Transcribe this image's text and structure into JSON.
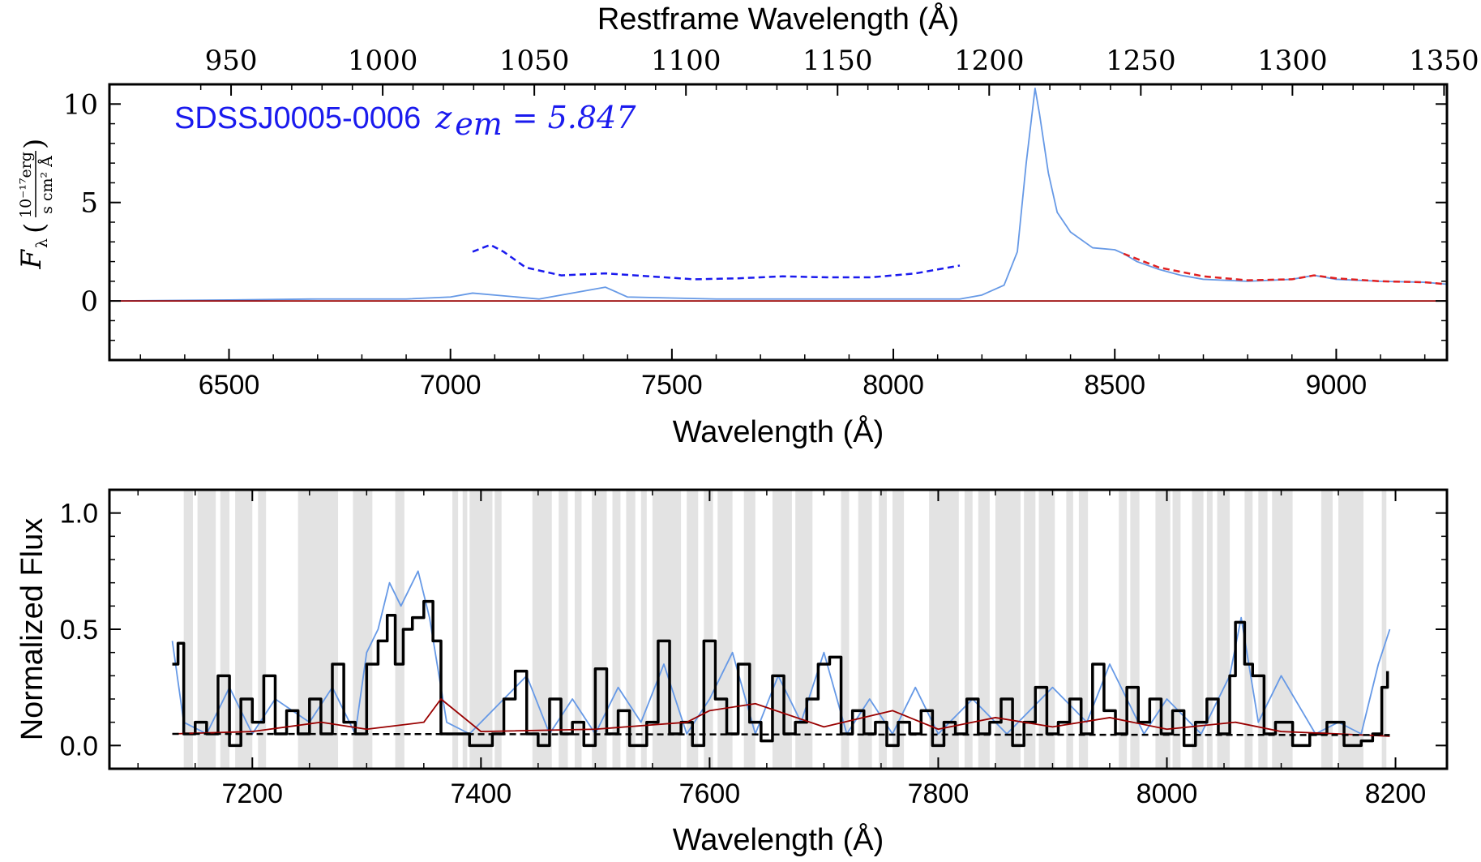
{
  "chart_data": [
    {
      "type": "line",
      "title": "",
      "annotation": {
        "object": "SDSSJ0005-0006",
        "redshift_label": "z",
        "redshift_sub": "em",
        "redshift_value": "5.847",
        "color": "#1a1aee"
      },
      "xlabel": "Wavelength (Å)",
      "x2label": "Restframe Wavelength (Å)",
      "ylabel": "F",
      "ylabel_sub": "λ",
      "ylabel_unit": {
        "numerator": "10⁻¹⁷erg",
        "denominator": "s cm² Å"
      },
      "xlim": [
        6230,
        9250
      ],
      "ylim": [
        -3,
        11
      ],
      "xticks": [
        "6500",
        "7000",
        "7500",
        "8000",
        "8500",
        "9000"
      ],
      "yticks": [
        "0",
        "5",
        "10"
      ],
      "x2ticks": [
        "950",
        "1000",
        "1050",
        "1100",
        "1150",
        "1200",
        "1250",
        "1300",
        "1350"
      ],
      "x2_conversion_z": 5.847,
      "grid": false,
      "series": [
        {
          "color": "#6699e6",
          "x": [
            6230,
            6500,
            6700,
            6900,
            7000,
            7050,
            7100,
            7200,
            7300,
            7350,
            7400,
            7600,
            7800,
            8000,
            8150,
            8200,
            8250,
            8280,
            8300,
            8320,
            8330,
            8350,
            8370,
            8400,
            8450,
            8500,
            8520,
            8550,
            8600,
            8650,
            8700,
            8800,
            8900,
            8950,
            9000,
            9100,
            9200,
            9250
          ],
          "y": [
            0.0,
            0.05,
            0.1,
            0.1,
            0.2,
            0.4,
            0.3,
            0.1,
            0.5,
            0.7,
            0.2,
            0.1,
            0.1,
            0.1,
            0.1,
            0.3,
            0.8,
            2.5,
            7.0,
            10.8,
            9.5,
            6.5,
            4.5,
            3.5,
            2.7,
            2.6,
            2.4,
            2.0,
            1.6,
            1.3,
            1.1,
            1.0,
            1.1,
            1.3,
            1.1,
            1.0,
            0.95,
            0.85
          ]
        },
        {
          "color": "#990000",
          "x": [
            6230,
            9250
          ],
          "y": [
            0.0,
            0.0
          ]
        },
        {
          "color": "#e02020",
          "style": "dashed",
          "x": [
            8520,
            8600,
            8700,
            8800,
            8900,
            8950,
            9000,
            9100,
            9200,
            9250
          ],
          "y": [
            2.4,
            1.7,
            1.25,
            1.05,
            1.1,
            1.3,
            1.15,
            1.0,
            0.95,
            0.85
          ]
        },
        {
          "color": "#1a1aee",
          "style": "dashed",
          "x": [
            7050,
            7090,
            7120,
            7170,
            7250,
            7350,
            7450,
            7550,
            7650,
            7750,
            7850,
            7950,
            8050,
            8150
          ],
          "y": [
            2.5,
            2.85,
            2.5,
            1.7,
            1.3,
            1.4,
            1.25,
            1.1,
            1.15,
            1.25,
            1.2,
            1.2,
            1.4,
            1.8
          ]
        }
      ]
    },
    {
      "type": "line",
      "title": "",
      "xlabel": "Wavelength (Å)",
      "ylabel": "Normalized Flux",
      "xlim": [
        7075,
        8245
      ],
      "ylim": [
        -0.1,
        1.1
      ],
      "xticks": [
        "7200",
        "7400",
        "7600",
        "7800",
        "8000",
        "8200"
      ],
      "yticks": [
        "0.0",
        "0.5",
        "1.0"
      ],
      "grid": false,
      "shaded_regions_color": "#e3e3e3",
      "shaded_regions": [
        [
          7140,
          7148
        ],
        [
          7152,
          7168
        ],
        [
          7172,
          7180
        ],
        [
          7185,
          7200
        ],
        [
          7205,
          7212
        ],
        [
          7240,
          7275
        ],
        [
          7288,
          7305
        ],
        [
          7325,
          7333
        ],
        [
          7375,
          7380
        ],
        [
          7384,
          7388
        ],
        [
          7390,
          7410
        ],
        [
          7412,
          7418
        ],
        [
          7445,
          7462
        ],
        [
          7468,
          7476
        ],
        [
          7482,
          7488
        ],
        [
          7497,
          7510
        ],
        [
          7515,
          7522
        ],
        [
          7527,
          7535
        ],
        [
          7540,
          7545
        ],
        [
          7550,
          7575
        ],
        [
          7580,
          7590
        ],
        [
          7595,
          7603
        ],
        [
          7607,
          7620
        ],
        [
          7630,
          7640
        ],
        [
          7655,
          7672
        ],
        [
          7675,
          7690
        ],
        [
          7715,
          7722
        ],
        [
          7730,
          7742
        ],
        [
          7748,
          7755
        ],
        [
          7760,
          7770
        ],
        [
          7792,
          7818
        ],
        [
          7823,
          7830
        ],
        [
          7835,
          7845
        ],
        [
          7850,
          7872
        ],
        [
          7875,
          7885
        ],
        [
          7888,
          7902
        ],
        [
          7912,
          7918
        ],
        [
          7923,
          7931
        ],
        [
          7958,
          7965
        ],
        [
          7968,
          7976
        ],
        [
          7990,
          8003
        ],
        [
          8005,
          8012
        ],
        [
          8022,
          8032
        ],
        [
          8035,
          8040
        ],
        [
          8044,
          8055
        ],
        [
          8068,
          8075
        ],
        [
          8080,
          8088
        ],
        [
          8092,
          8110
        ],
        [
          8135,
          8145
        ],
        [
          8150,
          8172
        ],
        [
          8188,
          8192
        ]
      ],
      "series": [
        {
          "color": "#6699e6",
          "x": [
            7130,
            7140,
            7160,
            7180,
            7200,
            7220,
            7250,
            7270,
            7290,
            7300,
            7310,
            7320,
            7330,
            7345,
            7355,
            7370,
            7390,
            7420,
            7440,
            7460,
            7480,
            7500,
            7520,
            7540,
            7560,
            7580,
            7600,
            7620,
            7640,
            7660,
            7680,
            7700,
            7720,
            7740,
            7760,
            7780,
            7800,
            7830,
            7860,
            7900,
            7930,
            7950,
            7980,
            8000,
            8030,
            8055,
            8065,
            8080,
            8100,
            8130,
            8150,
            8170,
            8185,
            8195
          ],
          "y": [
            0.45,
            0.1,
            0.05,
            0.25,
            0.05,
            0.2,
            0.1,
            0.25,
            0.05,
            0.4,
            0.5,
            0.7,
            0.6,
            0.75,
            0.55,
            0.1,
            0.05,
            0.2,
            0.3,
            0.05,
            0.2,
            0.05,
            0.25,
            0.1,
            0.35,
            0.05,
            0.2,
            0.4,
            0.05,
            0.3,
            0.1,
            0.4,
            0.05,
            0.2,
            0.05,
            0.25,
            0.05,
            0.2,
            0.05,
            0.25,
            0.1,
            0.35,
            0.05,
            0.2,
            0.05,
            0.3,
            0.55,
            0.1,
            0.3,
            0.05,
            0.1,
            0.05,
            0.35,
            0.5
          ]
        },
        {
          "color": "#000000",
          "x": [
            7130,
            7135,
            7140,
            7150,
            7160,
            7170,
            7180,
            7190,
            7200,
            7210,
            7220,
            7230,
            7240,
            7250,
            7260,
            7270,
            7280,
            7290,
            7300,
            7310,
            7318,
            7325,
            7332,
            7340,
            7350,
            7358,
            7365,
            7375,
            7390,
            7410,
            7420,
            7430,
            7440,
            7450,
            7460,
            7470,
            7480,
            7490,
            7500,
            7510,
            7520,
            7530,
            7545,
            7555,
            7565,
            7575,
            7585,
            7595,
            7605,
            7615,
            7625,
            7635,
            7645,
            7655,
            7665,
            7675,
            7685,
            7695,
            7705,
            7715,
            7725,
            7735,
            7745,
            7755,
            7765,
            7775,
            7785,
            7795,
            7805,
            7815,
            7825,
            7835,
            7845,
            7855,
            7865,
            7875,
            7885,
            7895,
            7905,
            7915,
            7925,
            7935,
            7945,
            7955,
            7965,
            7975,
            7985,
            7995,
            8005,
            8015,
            8025,
            8035,
            8045,
            8055,
            8060,
            8068,
            8075,
            8085,
            8095,
            8110,
            8125,
            8140,
            8155,
            8170,
            8180,
            8188,
            8193
          ],
          "y": [
            0.35,
            0.44,
            0.05,
            0.1,
            0.05,
            0.3,
            0.0,
            0.2,
            0.1,
            0.3,
            0.05,
            0.15,
            0.05,
            0.2,
            0.05,
            0.35,
            0.1,
            0.05,
            0.35,
            0.45,
            0.56,
            0.35,
            0.5,
            0.55,
            0.62,
            0.45,
            0.05,
            0.05,
            0.0,
            0.05,
            0.2,
            0.32,
            0.05,
            0.0,
            0.2,
            0.05,
            0.1,
            0.0,
            0.33,
            0.05,
            0.15,
            0.0,
            0.1,
            0.45,
            0.05,
            0.1,
            0.0,
            0.45,
            0.2,
            0.05,
            0.35,
            0.1,
            0.02,
            0.3,
            0.05,
            0.1,
            0.2,
            0.35,
            0.38,
            0.05,
            0.15,
            0.05,
            0.1,
            0.0,
            0.1,
            0.05,
            0.15,
            0.0,
            0.1,
            0.05,
            0.2,
            0.05,
            0.1,
            0.2,
            0.0,
            0.1,
            0.25,
            0.05,
            0.1,
            0.2,
            0.05,
            0.35,
            0.15,
            0.05,
            0.25,
            0.1,
            0.2,
            0.05,
            0.15,
            0.0,
            0.1,
            0.2,
            0.05,
            0.3,
            0.53,
            0.35,
            0.3,
            0.05,
            0.1,
            0.0,
            0.05,
            0.1,
            0.0,
            0.02,
            0.05,
            0.25,
            0.32
          ]
        },
        {
          "color": "#990000",
          "x": [
            7130,
            7200,
            7260,
            7300,
            7350,
            7365,
            7400,
            7500,
            7580,
            7600,
            7640,
            7700,
            7760,
            7800,
            7850,
            7900,
            7950,
            8000,
            8060,
            8100,
            8150,
            8195
          ],
          "y": [
            0.05,
            0.06,
            0.1,
            0.07,
            0.1,
            0.2,
            0.06,
            0.07,
            0.1,
            0.15,
            0.18,
            0.08,
            0.15,
            0.07,
            0.12,
            0.08,
            0.12,
            0.07,
            0.1,
            0.06,
            0.05,
            0.04
          ]
        },
        {
          "color": "#000000",
          "style": "dashed",
          "x": [
            7130,
            8195
          ],
          "y": [
            0.05,
            0.045
          ]
        }
      ]
    }
  ]
}
